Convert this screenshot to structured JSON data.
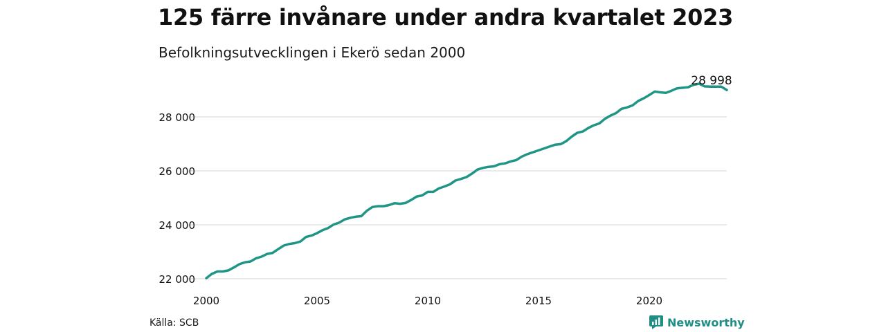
{
  "header": {
    "title": "125 färre invånare under andra kvartalet 2023",
    "subtitle": "Befolkningsutvecklingen i Ekerö sedan 2000"
  },
  "footer": {
    "source": "Källa: SCB",
    "brand": "Newsworthy",
    "brand_icon": "chart-badge-icon"
  },
  "colors": {
    "line": "#1f9585",
    "grid": "#dddddd",
    "text": "#111111"
  },
  "chart_data": {
    "type": "line",
    "title": "125 färre invånare under andra kvartalet 2023",
    "subtitle": "Befolkningsutvecklingen i Ekerö sedan 2000",
    "xlabel": "",
    "ylabel": "",
    "xlim": [
      2000,
      2023.5
    ],
    "ylim": [
      21800,
      29400
    ],
    "x_ticks": [
      2000,
      2005,
      2010,
      2015,
      2020
    ],
    "x_tick_labels": [
      "2000",
      "2005",
      "2010",
      "2015",
      "2020"
    ],
    "y_ticks": [
      22000,
      24000,
      26000,
      28000
    ],
    "y_tick_labels": [
      "22 000",
      "24 000",
      "26 000",
      "28 000"
    ],
    "grid": "horizontal",
    "end_label": "28 998",
    "series": [
      {
        "x": [
          2000.0,
          2000.25,
          2000.5,
          2000.75,
          2001.0,
          2001.25,
          2001.5,
          2001.75,
          2002.0,
          2002.25,
          2002.5,
          2002.75,
          2003.0,
          2003.25,
          2003.5,
          2003.75,
          2004.0,
          2004.25,
          2004.5,
          2004.75,
          2005.0,
          2005.25,
          2005.5,
          2005.75,
          2006.0,
          2006.25,
          2006.5,
          2006.75,
          2007.0,
          2007.25,
          2007.5,
          2007.75,
          2008.0,
          2008.25,
          2008.5,
          2008.75,
          2009.0,
          2009.25,
          2009.5,
          2009.75,
          2010.0,
          2010.25,
          2010.5,
          2010.75,
          2011.0,
          2011.25,
          2011.5,
          2011.75,
          2012.0,
          2012.25,
          2012.5,
          2012.75,
          2013.0,
          2013.25,
          2013.5,
          2013.75,
          2014.0,
          2014.25,
          2014.5,
          2014.75,
          2015.0,
          2015.25,
          2015.5,
          2015.75,
          2016.0,
          2016.25,
          2016.5,
          2016.75,
          2017.0,
          2017.25,
          2017.5,
          2017.75,
          2018.0,
          2018.25,
          2018.5,
          2018.75,
          2019.0,
          2019.25,
          2019.5,
          2019.75,
          2020.0,
          2020.25,
          2020.5,
          2020.75,
          2021.0,
          2021.25,
          2021.5,
          2021.75,
          2022.0,
          2022.25,
          2022.5,
          2022.75,
          2023.0,
          2023.25,
          2023.5
        ],
        "values": [
          22020,
          22180,
          22270,
          22270,
          22310,
          22420,
          22540,
          22610,
          22640,
          22760,
          22820,
          22920,
          22960,
          23100,
          23230,
          23290,
          23320,
          23380,
          23550,
          23600,
          23690,
          23800,
          23880,
          24010,
          24080,
          24200,
          24260,
          24300,
          24320,
          24520,
          24660,
          24690,
          24690,
          24730,
          24800,
          24780,
          24810,
          24920,
          25050,
          25090,
          25220,
          25220,
          25350,
          25420,
          25500,
          25640,
          25700,
          25770,
          25900,
          26050,
          26110,
          26150,
          26170,
          26250,
          26280,
          26350,
          26400,
          26530,
          26620,
          26690,
          26760,
          26830,
          26900,
          26970,
          26990,
          27100,
          27270,
          27410,
          27460,
          27590,
          27690,
          27760,
          27930,
          28050,
          28140,
          28300,
          28350,
          28430,
          28590,
          28690,
          28810,
          28940,
          28910,
          28890,
          28970,
          29060,
          29080,
          29100,
          29190,
          29230,
          29130,
          29120,
          29120,
          29123,
          28998
        ]
      }
    ]
  }
}
